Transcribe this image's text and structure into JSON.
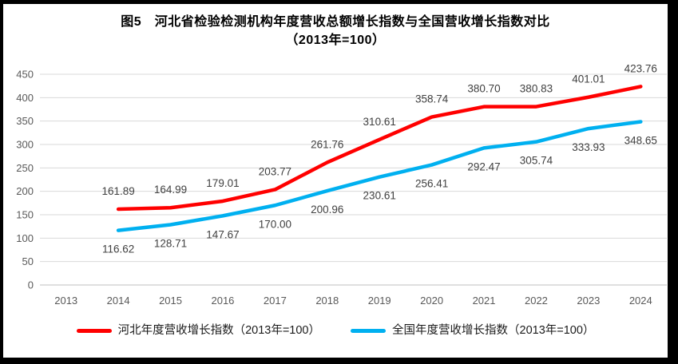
{
  "chart_data": {
    "type": "line",
    "title_line1": "图5　河北省检验检测机构年度营收总额增长指数与全国营收增长指数对比",
    "title_line2": "（2013年=100）",
    "categories": [
      "2013",
      "2014",
      "2015",
      "2016",
      "2017",
      "2018",
      "2019",
      "2020",
      "2021",
      "2022",
      "2023",
      "2024"
    ],
    "series": [
      {
        "name": "河北年度营收增长指数（2013年=100）",
        "color": "#ff0000",
        "label_position": "above",
        "values": [
          null,
          161.89,
          164.99,
          179.01,
          203.77,
          261.76,
          310.61,
          358.74,
          380.7,
          380.83,
          401.01,
          423.76
        ]
      },
      {
        "name": "全国年度营收增长指数（2013年=100）",
        "color": "#00b0f0",
        "label_position": "below",
        "values": [
          null,
          116.62,
          128.71,
          147.67,
          170.0,
          200.96,
          230.61,
          256.41,
          292.47,
          305.74,
          333.93,
          348.65
        ]
      }
    ],
    "y_ticks": [
      0,
      50,
      100,
      150,
      200,
      250,
      300,
      350,
      400,
      450
    ],
    "ylim": [
      0,
      450
    ],
    "grid": true,
    "legend_position": "bottom",
    "value_label_decimals": 2,
    "axis_label_color": "#595959",
    "data_label_color": "#404040",
    "gridline_color": "#d9d9d9",
    "axis_line_color": "#bfbfbf",
    "frame_border_color": "#000000"
  }
}
